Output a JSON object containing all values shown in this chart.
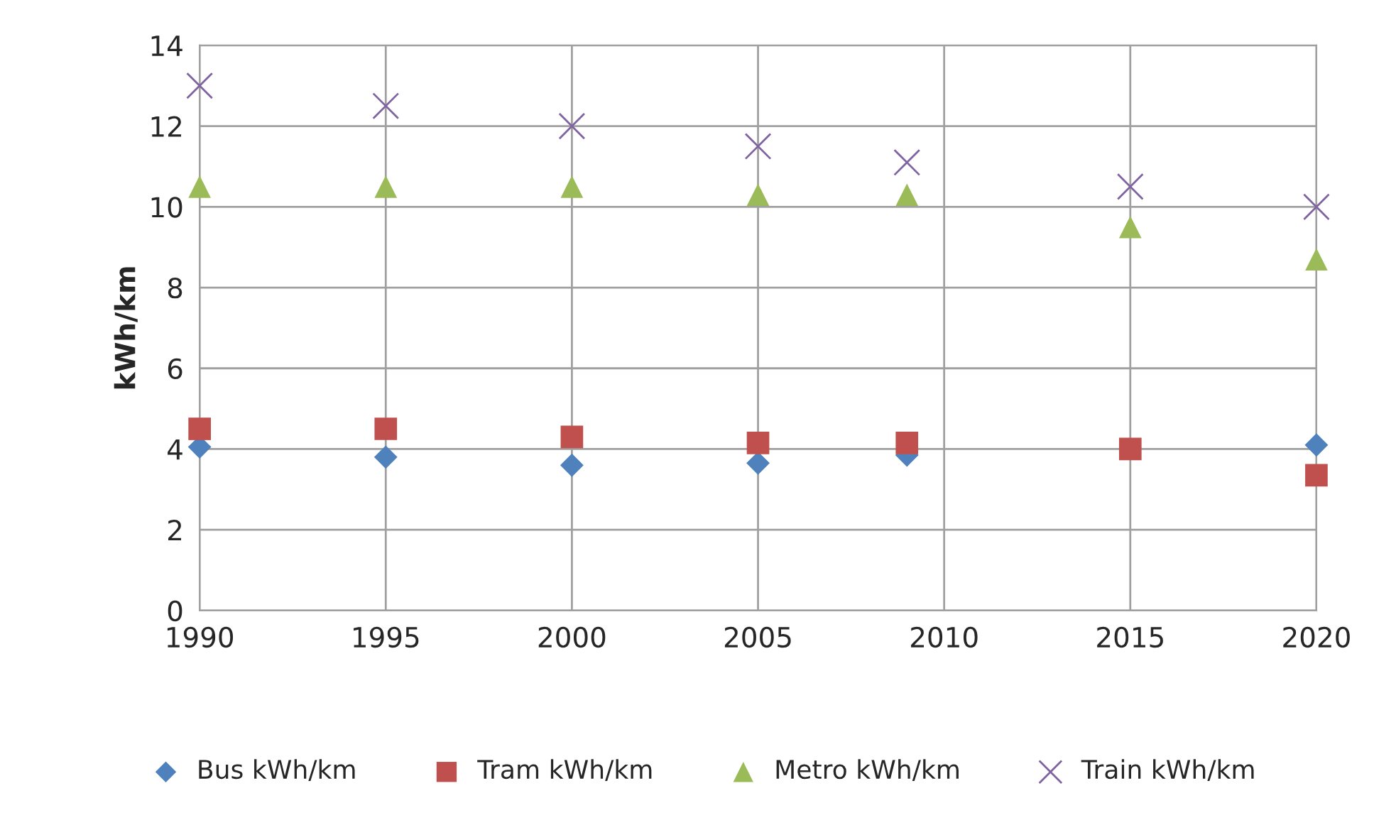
{
  "chart_data": {
    "type": "scatter",
    "ylabel": "kWh/km",
    "x": [
      1990,
      1995,
      2000,
      2005,
      2009,
      2015,
      2020
    ],
    "xlim": [
      1990,
      2020
    ],
    "xticks": [
      1990,
      1995,
      2000,
      2005,
      2010,
      2015,
      2020
    ],
    "ylim": [
      0,
      14
    ],
    "yticks": [
      0,
      2,
      4,
      6,
      8,
      10,
      12,
      14
    ],
    "grid": true,
    "legend": "bottom",
    "series": [
      {
        "name": "Bus kWh/km",
        "color": "#4f81bd",
        "marker": "diamond",
        "values": [
          4.05,
          3.8,
          3.6,
          3.65,
          3.85,
          null,
          4.1
        ]
      },
      {
        "name": "Tram kWh/km",
        "color": "#c0504d",
        "marker": "square",
        "values": [
          4.5,
          4.5,
          4.3,
          4.15,
          4.15,
          4.0,
          3.35
        ]
      },
      {
        "name": "Metro kWh/km",
        "color": "#9bbb59",
        "marker": "triangle",
        "values": [
          10.5,
          10.5,
          10.5,
          10.3,
          10.3,
          9.5,
          8.7
        ]
      },
      {
        "name": "Train kWh/km",
        "color": "#8064a2",
        "marker": "cross",
        "values": [
          13.0,
          12.5,
          12.0,
          11.5,
          11.1,
          10.5,
          10.0
        ]
      }
    ]
  }
}
